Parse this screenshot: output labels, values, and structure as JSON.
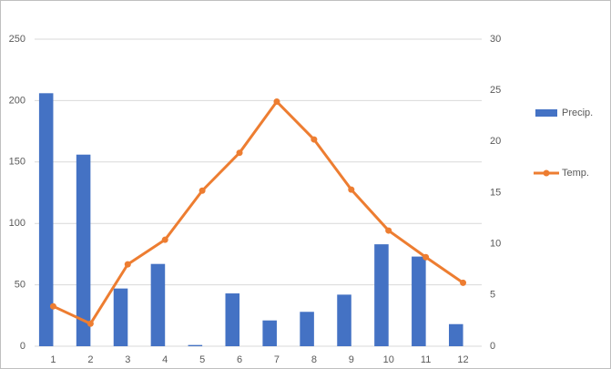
{
  "chart_data": {
    "type": "combo",
    "categories": [
      "1",
      "2",
      "3",
      "4",
      "5",
      "6",
      "7",
      "8",
      "9",
      "10",
      "11",
      "12"
    ],
    "series": [
      {
        "name": "Precip.",
        "type": "bar",
        "color": "#4472c4",
        "values": [
          206,
          156,
          47,
          67,
          1,
          43,
          21,
          28,
          42,
          83,
          73,
          18
        ]
      },
      {
        "name": "Temp.",
        "type": "line",
        "axis": "y2",
        "color": "#ed7d31",
        "values": [
          3.9,
          2.2,
          8.0,
          10.4,
          15.2,
          18.9,
          23.9,
          20.2,
          15.3,
          11.3,
          8.7,
          6.2
        ]
      }
    ],
    "ylim": [
      0,
      250
    ],
    "yticks": [
      0,
      50,
      100,
      150,
      200,
      250
    ],
    "y2lim": [
      0,
      30
    ],
    "y2ticks": [
      0,
      5,
      10,
      15,
      20,
      25,
      30
    ],
    "grid": true,
    "legend": "right"
  }
}
